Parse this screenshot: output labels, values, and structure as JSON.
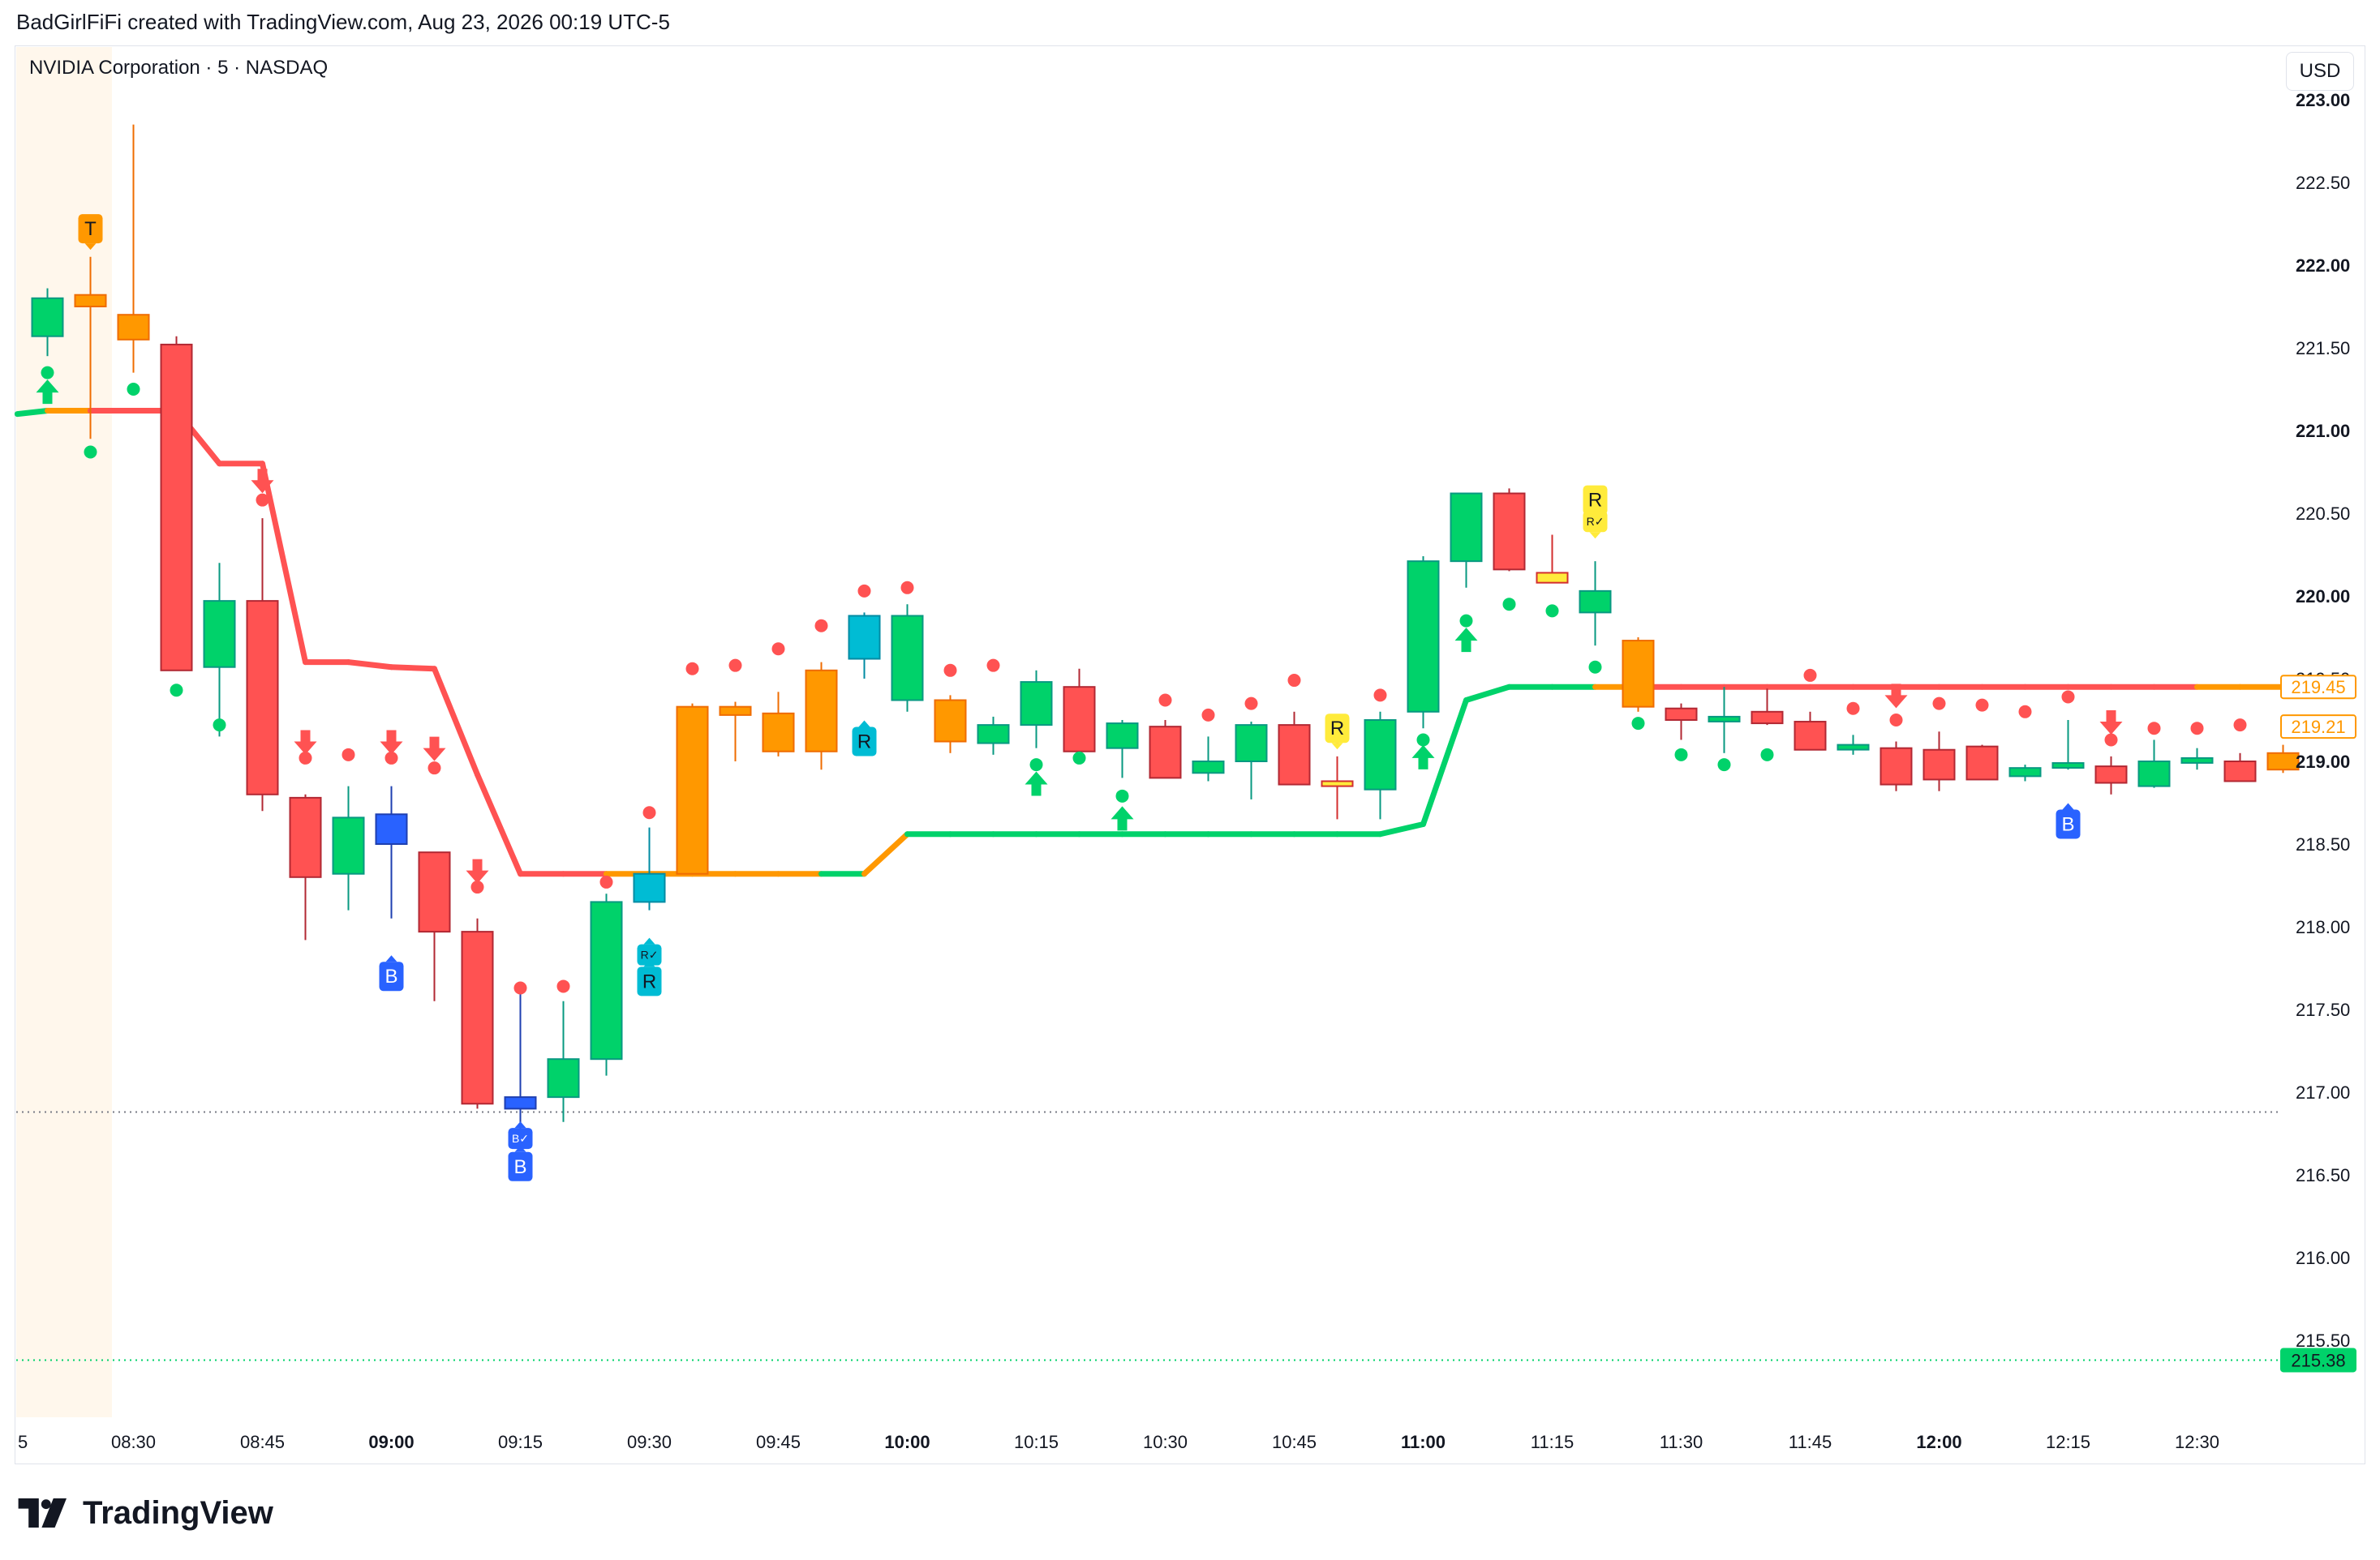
{
  "header": {
    "caption": "BadGirlFiFi created with TradingView.com, Aug 23, 2026 00:19 UTC-5"
  },
  "chart": {
    "symbol_title": "NVIDIA Corporation · 5 · NASDAQ",
    "currency": "USD"
  },
  "brand": {
    "name": "TradingView"
  },
  "colors": {
    "up": "#00d26a",
    "down": "#ff5252",
    "orange": "#ff9800",
    "blue": "#2962ff",
    "cyan": "#00bcd4",
    "yellow": "#ffeb3b",
    "session": "#fff7ec"
  },
  "chart_data": {
    "type": "candlestick",
    "title": "NVIDIA Corporation · 5 · NASDAQ",
    "y_ticks": [
      "215.50",
      "216.00",
      "216.50",
      "217.00",
      "217.50",
      "218.00",
      "218.50",
      "219.00",
      "219.50",
      "220.00",
      "220.50",
      "221.00",
      "221.50",
      "222.00",
      "222.50",
      "223.00"
    ],
    "y_range": [
      215.12,
      223.12
    ],
    "y_labels_bold": [
      "219.00",
      "220.00",
      "221.00",
      "222.00",
      "223.00"
    ],
    "x_ticks": [
      {
        "i": 2,
        "label": "08:30"
      },
      {
        "i": 5,
        "label": "08:45"
      },
      {
        "i": 8,
        "label": "09:00",
        "bold": true
      },
      {
        "i": 11,
        "label": "09:15"
      },
      {
        "i": 14,
        "label": "09:30"
      },
      {
        "i": 17,
        "label": "09:45"
      },
      {
        "i": 20,
        "label": "10:00",
        "bold": true
      },
      {
        "i": 23,
        "label": "10:15"
      },
      {
        "i": 26,
        "label": "10:30"
      },
      {
        "i": 29,
        "label": "10:45"
      },
      {
        "i": 32,
        "label": "11:00",
        "bold": true
      },
      {
        "i": 35,
        "label": "11:15"
      },
      {
        "i": 38,
        "label": "11:30"
      },
      {
        "i": 41,
        "label": "11:45"
      },
      {
        "i": 44,
        "label": "12:00",
        "bold": true
      },
      {
        "i": 47,
        "label": "12:15"
      },
      {
        "i": 50,
        "label": "12:30"
      }
    ],
    "x_edge_label": "5",
    "price_markers": [
      {
        "value": 219.45,
        "label": "219.45",
        "style": "outline",
        "color": "#ff9800"
      },
      {
        "value": 219.21,
        "label": "219.21",
        "style": "outline",
        "color": "#ff9800"
      },
      {
        "value": 215.38,
        "label": "215.38",
        "style": "filled",
        "color": "#00d26a"
      }
    ],
    "hlines": [
      {
        "value": 216.88,
        "color": "#787b86"
      },
      {
        "value": 215.38,
        "color": "#00d26a"
      }
    ],
    "candles": [
      {
        "o": 221.8,
        "h": 221.86,
        "l": 221.45,
        "c": 221.57,
        "color": "up"
      },
      {
        "o": 221.82,
        "h": 222.05,
        "l": 220.95,
        "c": 221.75,
        "color": "orange"
      },
      {
        "o": 221.7,
        "h": 222.85,
        "l": 221.35,
        "c": 221.55,
        "color": "orange"
      },
      {
        "o": 221.52,
        "h": 221.57,
        "l": 219.55,
        "c": 219.55,
        "color": "down"
      },
      {
        "o": 219.57,
        "h": 220.2,
        "l": 219.15,
        "c": 219.97,
        "color": "up"
      },
      {
        "o": 219.97,
        "h": 220.47,
        "l": 218.7,
        "c": 218.8,
        "color": "down"
      },
      {
        "o": 218.78,
        "h": 218.8,
        "l": 217.92,
        "c": 218.3,
        "color": "down"
      },
      {
        "o": 218.32,
        "h": 218.85,
        "l": 218.1,
        "c": 218.66,
        "color": "up"
      },
      {
        "o": 218.68,
        "h": 218.85,
        "l": 218.05,
        "c": 218.5,
        "color": "blue"
      },
      {
        "o": 218.45,
        "h": 218.45,
        "l": 217.55,
        "c": 217.97,
        "color": "down"
      },
      {
        "o": 217.97,
        "h": 218.05,
        "l": 216.9,
        "c": 216.93,
        "color": "down"
      },
      {
        "o": 216.9,
        "h": 217.6,
        "l": 216.78,
        "c": 216.97,
        "color": "blue"
      },
      {
        "o": 216.97,
        "h": 217.55,
        "l": 216.82,
        "c": 217.2,
        "color": "up"
      },
      {
        "o": 217.2,
        "h": 218.2,
        "l": 217.1,
        "c": 218.15,
        "color": "up"
      },
      {
        "o": 218.15,
        "h": 218.6,
        "l": 218.1,
        "c": 218.32,
        "color": "cyan"
      },
      {
        "o": 218.32,
        "h": 219.35,
        "l": 218.32,
        "c": 219.33,
        "color": "orange"
      },
      {
        "o": 219.33,
        "h": 219.36,
        "l": 219.0,
        "c": 219.28,
        "color": "orange"
      },
      {
        "o": 219.29,
        "h": 219.42,
        "l": 219.03,
        "c": 219.06,
        "color": "orange"
      },
      {
        "o": 219.06,
        "h": 219.6,
        "l": 218.95,
        "c": 219.55,
        "color": "orange"
      },
      {
        "o": 219.62,
        "h": 219.9,
        "l": 219.5,
        "c": 219.88,
        "color": "cyan"
      },
      {
        "o": 219.88,
        "h": 219.95,
        "l": 219.3,
        "c": 219.37,
        "color": "up"
      },
      {
        "o": 219.37,
        "h": 219.4,
        "l": 219.05,
        "c": 219.12,
        "color": "orange"
      },
      {
        "o": 219.11,
        "h": 219.27,
        "l": 219.04,
        "c": 219.22,
        "color": "up"
      },
      {
        "o": 219.22,
        "h": 219.55,
        "l": 219.08,
        "c": 219.48,
        "color": "up"
      },
      {
        "o": 219.45,
        "h": 219.56,
        "l": 219.05,
        "c": 219.06,
        "color": "down"
      },
      {
        "o": 219.08,
        "h": 219.25,
        "l": 218.9,
        "c": 219.23,
        "color": "up"
      },
      {
        "o": 219.21,
        "h": 219.25,
        "l": 218.9,
        "c": 218.9,
        "color": "down"
      },
      {
        "o": 218.93,
        "h": 219.15,
        "l": 218.88,
        "c": 219.0,
        "color": "up"
      },
      {
        "o": 219.0,
        "h": 219.24,
        "l": 218.77,
        "c": 219.22,
        "color": "up"
      },
      {
        "o": 219.22,
        "h": 219.3,
        "l": 218.88,
        "c": 218.86,
        "color": "down"
      },
      {
        "o": 218.88,
        "h": 219.03,
        "l": 218.65,
        "c": 218.85,
        "color": "yellow"
      },
      {
        "o": 218.83,
        "h": 219.3,
        "l": 218.65,
        "c": 219.25,
        "color": "up"
      },
      {
        "o": 219.3,
        "h": 220.24,
        "l": 219.2,
        "c": 220.21,
        "color": "up"
      },
      {
        "o": 220.21,
        "h": 220.62,
        "l": 220.05,
        "c": 220.62,
        "color": "up"
      },
      {
        "o": 220.62,
        "h": 220.65,
        "l": 220.15,
        "c": 220.16,
        "color": "down"
      },
      {
        "o": 220.14,
        "h": 220.37,
        "l": 220.1,
        "c": 220.08,
        "color": "yellow"
      },
      {
        "o": 219.9,
        "h": 220.21,
        "l": 219.7,
        "c": 220.03,
        "color": "up"
      },
      {
        "o": 219.73,
        "h": 219.75,
        "l": 219.3,
        "c": 219.33,
        "color": "orange"
      },
      {
        "o": 219.32,
        "h": 219.35,
        "l": 219.13,
        "c": 219.25,
        "color": "down"
      },
      {
        "o": 219.27,
        "h": 219.45,
        "l": 219.05,
        "c": 219.26,
        "color": "up"
      },
      {
        "o": 219.3,
        "h": 219.44,
        "l": 219.22,
        "c": 219.23,
        "color": "down"
      },
      {
        "o": 219.24,
        "h": 219.3,
        "l": 219.07,
        "c": 219.07,
        "color": "down"
      },
      {
        "o": 219.1,
        "h": 219.16,
        "l": 219.04,
        "c": 219.08,
        "color": "up"
      },
      {
        "o": 219.08,
        "h": 219.12,
        "l": 218.82,
        "c": 218.86,
        "color": "down"
      },
      {
        "o": 219.07,
        "h": 219.18,
        "l": 218.82,
        "c": 218.89,
        "color": "down"
      },
      {
        "o": 219.09,
        "h": 219.1,
        "l": 218.9,
        "c": 218.89,
        "color": "down"
      },
      {
        "o": 218.91,
        "h": 218.98,
        "l": 218.88,
        "c": 218.96,
        "color": "up"
      },
      {
        "o": 218.98,
        "h": 219.25,
        "l": 218.95,
        "c": 218.99,
        "color": "up"
      },
      {
        "o": 218.97,
        "h": 219.03,
        "l": 218.8,
        "c": 218.87,
        "color": "down"
      },
      {
        "o": 218.85,
        "h": 219.13,
        "l": 218.84,
        "c": 219.0,
        "color": "up"
      },
      {
        "o": 219.02,
        "h": 219.08,
        "l": 218.95,
        "c": 219.02,
        "color": "up"
      },
      {
        "o": 219.0,
        "h": 219.05,
        "l": 218.89,
        "c": 218.88,
        "color": "down"
      },
      {
        "o": 218.95,
        "h": 219.1,
        "l": 218.93,
        "c": 219.05,
        "color": "orange"
      }
    ],
    "supertrend": [
      {
        "i": -0.7,
        "v": 221.1,
        "c": "up"
      },
      {
        "i": 0,
        "v": 221.12,
        "c": "up"
      },
      {
        "i": 1,
        "v": 221.12,
        "c": "orange"
      },
      {
        "i": 2,
        "v": 221.12,
        "c": "down"
      },
      {
        "i": 3,
        "v": 221.12,
        "c": "down"
      },
      {
        "i": 4,
        "v": 220.8,
        "c": "down"
      },
      {
        "i": 5,
        "v": 220.8,
        "c": "down"
      },
      {
        "i": 6,
        "v": 219.6,
        "c": "down"
      },
      {
        "i": 7,
        "v": 219.6,
        "c": "down"
      },
      {
        "i": 8,
        "v": 219.57,
        "c": "down"
      },
      {
        "i": 9,
        "v": 219.56,
        "c": "down"
      },
      {
        "i": 10,
        "v": 218.92,
        "c": "down"
      },
      {
        "i": 11,
        "v": 218.32,
        "c": "down"
      },
      {
        "i": 12,
        "v": 218.32,
        "c": "down"
      },
      {
        "i": 13,
        "v": 218.32,
        "c": "down"
      },
      {
        "i": 14,
        "v": 218.32,
        "c": "orange"
      },
      {
        "i": 15,
        "v": 218.32,
        "c": "orange"
      },
      {
        "i": 16,
        "v": 218.32,
        "c": "orange"
      },
      {
        "i": 17,
        "v": 218.32,
        "c": "orange"
      },
      {
        "i": 18,
        "v": 218.32,
        "c": "orange"
      },
      {
        "i": 19,
        "v": 218.32,
        "c": "up"
      },
      {
        "i": 20,
        "v": 218.56,
        "c": "orange"
      },
      {
        "i": 21,
        "v": 218.56,
        "c": "up"
      },
      {
        "i": 22,
        "v": 218.56,
        "c": "up"
      },
      {
        "i": 23,
        "v": 218.56,
        "c": "up"
      },
      {
        "i": 24,
        "v": 218.56,
        "c": "up"
      },
      {
        "i": 25,
        "v": 218.56,
        "c": "up"
      },
      {
        "i": 26,
        "v": 218.56,
        "c": "up"
      },
      {
        "i": 27,
        "v": 218.56,
        "c": "up"
      },
      {
        "i": 28,
        "v": 218.56,
        "c": "up"
      },
      {
        "i": 29,
        "v": 218.56,
        "c": "up"
      },
      {
        "i": 30,
        "v": 218.56,
        "c": "up"
      },
      {
        "i": 31,
        "v": 218.56,
        "c": "up"
      },
      {
        "i": 32,
        "v": 218.62,
        "c": "up"
      },
      {
        "i": 33,
        "v": 219.37,
        "c": "up"
      },
      {
        "i": 34,
        "v": 219.45,
        "c": "up"
      },
      {
        "i": 35,
        "v": 219.45,
        "c": "up"
      },
      {
        "i": 36,
        "v": 219.45,
        "c": "up"
      },
      {
        "i": 37,
        "v": 219.45,
        "c": "orange"
      },
      {
        "i": 38,
        "v": 219.45,
        "c": "down"
      },
      {
        "i": 39,
        "v": 219.45,
        "c": "down"
      },
      {
        "i": 40,
        "v": 219.45,
        "c": "down"
      },
      {
        "i": 41,
        "v": 219.45,
        "c": "down"
      },
      {
        "i": 42,
        "v": 219.45,
        "c": "down"
      },
      {
        "i": 43,
        "v": 219.45,
        "c": "down"
      },
      {
        "i": 44,
        "v": 219.45,
        "c": "down"
      },
      {
        "i": 45,
        "v": 219.45,
        "c": "down"
      },
      {
        "i": 46,
        "v": 219.45,
        "c": "down"
      },
      {
        "i": 47,
        "v": 219.45,
        "c": "down"
      },
      {
        "i": 48,
        "v": 219.45,
        "c": "down"
      },
      {
        "i": 49,
        "v": 219.45,
        "c": "down"
      },
      {
        "i": 50,
        "v": 219.45,
        "c": "down"
      },
      {
        "i": 51,
        "v": 219.45,
        "c": "orange"
      },
      {
        "i": 52,
        "v": 219.45,
        "c": "orange"
      }
    ],
    "dots": [
      {
        "i": 0,
        "v": 221.35,
        "c": "up"
      },
      {
        "i": 1,
        "v": 220.87,
        "c": "up"
      },
      {
        "i": 2,
        "v": 221.25,
        "c": "up"
      },
      {
        "i": 3,
        "v": 219.43,
        "c": "up"
      },
      {
        "i": 4,
        "v": 219.22,
        "c": "up"
      },
      {
        "i": 5,
        "v": 220.58,
        "c": "down"
      },
      {
        "i": 6,
        "v": 219.02,
        "c": "down"
      },
      {
        "i": 7,
        "v": 219.04,
        "c": "down"
      },
      {
        "i": 8,
        "v": 219.02,
        "c": "down"
      },
      {
        "i": 9,
        "v": 218.96,
        "c": "down"
      },
      {
        "i": 10,
        "v": 218.24,
        "c": "down"
      },
      {
        "i": 11,
        "v": 217.63,
        "c": "down"
      },
      {
        "i": 12,
        "v": 217.64,
        "c": "down"
      },
      {
        "i": 13,
        "v": 218.27,
        "c": "down"
      },
      {
        "i": 14,
        "v": 218.69,
        "c": "down"
      },
      {
        "i": 15,
        "v": 219.56,
        "c": "down"
      },
      {
        "i": 16,
        "v": 219.58,
        "c": "down"
      },
      {
        "i": 17,
        "v": 219.68,
        "c": "down"
      },
      {
        "i": 18,
        "v": 219.82,
        "c": "down"
      },
      {
        "i": 19,
        "v": 220.03,
        "c": "down"
      },
      {
        "i": 20,
        "v": 220.05,
        "c": "down"
      },
      {
        "i": 21,
        "v": 219.55,
        "c": "down"
      },
      {
        "i": 22,
        "v": 219.58,
        "c": "down"
      },
      {
        "i": 23,
        "v": 218.98,
        "c": "up"
      },
      {
        "i": 24,
        "v": 219.02,
        "c": "up"
      },
      {
        "i": 25,
        "v": 218.79,
        "c": "up"
      },
      {
        "i": 26,
        "v": 219.37,
        "c": "down"
      },
      {
        "i": 27,
        "v": 219.28,
        "c": "down"
      },
      {
        "i": 28,
        "v": 219.35,
        "c": "down"
      },
      {
        "i": 29,
        "v": 219.49,
        "c": "down"
      },
      {
        "i": 30,
        "v": 219.15,
        "c": "down"
      },
      {
        "i": 31,
        "v": 219.4,
        "c": "down"
      },
      {
        "i": 32,
        "v": 219.13,
        "c": "up"
      },
      {
        "i": 33,
        "v": 219.85,
        "c": "up"
      },
      {
        "i": 34,
        "v": 219.95,
        "c": "up"
      },
      {
        "i": 35,
        "v": 219.91,
        "c": "up"
      },
      {
        "i": 36,
        "v": 219.57,
        "c": "up"
      },
      {
        "i": 37,
        "v": 219.23,
        "c": "up"
      },
      {
        "i": 38,
        "v": 219.04,
        "c": "up"
      },
      {
        "i": 39,
        "v": 218.98,
        "c": "up"
      },
      {
        "i": 40,
        "v": 219.04,
        "c": "up"
      },
      {
        "i": 41,
        "v": 219.52,
        "c": "down"
      },
      {
        "i": 42,
        "v": 219.32,
        "c": "down"
      },
      {
        "i": 43,
        "v": 219.25,
        "c": "down"
      },
      {
        "i": 44,
        "v": 219.35,
        "c": "down"
      },
      {
        "i": 45,
        "v": 219.34,
        "c": "down"
      },
      {
        "i": 46,
        "v": 219.3,
        "c": "down"
      },
      {
        "i": 47,
        "v": 219.39,
        "c": "down"
      },
      {
        "i": 48,
        "v": 219.13,
        "c": "down"
      },
      {
        "i": 49,
        "v": 219.2,
        "c": "down"
      },
      {
        "i": 50,
        "v": 219.2,
        "c": "down"
      },
      {
        "i": 51,
        "v": 219.22,
        "c": "down"
      }
    ],
    "arrows": [
      {
        "i": 0,
        "v": 221.23,
        "dir": "up"
      },
      {
        "i": 5,
        "v": 220.7,
        "dir": "down"
      },
      {
        "i": 6,
        "v": 219.12,
        "dir": "down"
      },
      {
        "i": 8,
        "v": 219.12,
        "dir": "down"
      },
      {
        "i": 9,
        "v": 219.08,
        "dir": "down"
      },
      {
        "i": 10,
        "v": 218.34,
        "dir": "down"
      },
      {
        "i": 23,
        "v": 218.86,
        "dir": "up"
      },
      {
        "i": 25,
        "v": 218.65,
        "dir": "up"
      },
      {
        "i": 32,
        "v": 219.02,
        "dir": "up"
      },
      {
        "i": 33,
        "v": 219.73,
        "dir": "up"
      },
      {
        "i": 43,
        "v": 219.4,
        "dir": "down"
      },
      {
        "i": 48,
        "v": 219.24,
        "dir": "down"
      }
    ],
    "signals": [
      {
        "i": 1,
        "v": 222.22,
        "label": "T",
        "color": "orange",
        "pointer": "down"
      },
      {
        "i": 8,
        "v": 217.7,
        "label": "B",
        "color": "blue",
        "pointer": "up"
      },
      {
        "i": 11,
        "v": 216.55,
        "label": "B",
        "color": "blue",
        "pointer": "up"
      },
      {
        "i": 11,
        "v": 216.72,
        "label": "B✓",
        "color": "blue",
        "pointer": "up",
        "small": true
      },
      {
        "i": 14,
        "v": 217.67,
        "label": "R",
        "color": "cyan",
        "pointer": "up"
      },
      {
        "i": 14,
        "v": 217.83,
        "label": "R✓",
        "color": "cyan",
        "pointer": "up",
        "small": true
      },
      {
        "i": 19,
        "v": 219.12,
        "label": "R",
        "color": "cyan",
        "pointer": "up"
      },
      {
        "i": 30,
        "v": 219.2,
        "label": "R",
        "color": "yellow",
        "pointer": "down"
      },
      {
        "i": 36,
        "v": 220.58,
        "label": "R",
        "color": "yellow",
        "pointer": "down"
      },
      {
        "i": 36,
        "v": 220.45,
        "label": "R✓",
        "color": "yellow",
        "pointer": "down",
        "small": true
      },
      {
        "i": 47,
        "v": 218.62,
        "label": "B",
        "color": "blue",
        "pointer": "up"
      }
    ]
  }
}
